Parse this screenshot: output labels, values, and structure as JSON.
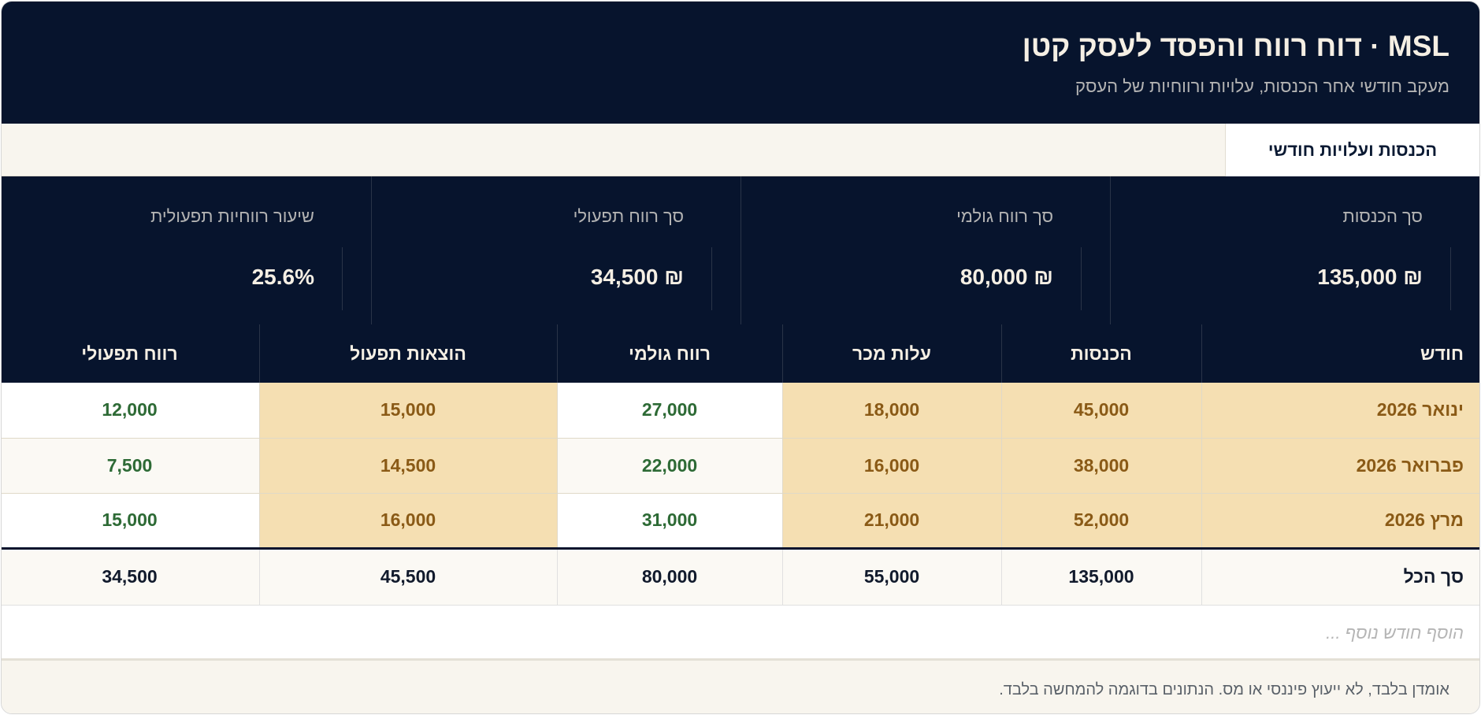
{
  "header": {
    "title": "MSL · דוח רווח והפסד לעסק קטן",
    "subtitle": "מעקב חודשי אחר הכנסות, עלויות ורווחיות של העסק"
  },
  "tabs": [
    {
      "label": "הכנסות ועלויות חודשי"
    }
  ],
  "kpis": [
    {
      "label": "סך הכנסות",
      "value": "135,000 ₪"
    },
    {
      "label": "סך רווח גולמי",
      "value": "80,000 ₪"
    },
    {
      "label": "סך רווח תפעולי",
      "value": "34,500 ₪"
    },
    {
      "label": "שיעור רווחיות תפעולית",
      "value": "25.6%"
    }
  ],
  "table": {
    "columns": [
      "חודש",
      "הכנסות",
      "עלות מכר",
      "רווח גולמי",
      "הוצאות תפעול",
      "רווח תפעולי"
    ],
    "rows": [
      [
        "ינואר 2026",
        "45,000",
        "18,000",
        "27,000",
        "15,000",
        "12,000"
      ],
      [
        "פברואר 2026",
        "38,000",
        "16,000",
        "22,000",
        "14,500",
        "7,500"
      ],
      [
        "מרץ 2026",
        "52,000",
        "21,000",
        "31,000",
        "16,000",
        "15,000"
      ]
    ],
    "total": [
      "סך הכל",
      "135,000",
      "55,000",
      "80,000",
      "45,500",
      "34,500"
    ],
    "add_row_placeholder": "הוסף חודש נוסף ..."
  },
  "footer": {
    "disclaimer": "אומדן בלבד, לא ייעוץ פיננסי או מס. הנתונים בדוגמה להמחשה בלבד."
  },
  "colors": {
    "navy": "#07142d",
    "highlight": "#f5dfb2",
    "highlight_text": "#8a5a16",
    "positive_text": "#2d6a35"
  }
}
